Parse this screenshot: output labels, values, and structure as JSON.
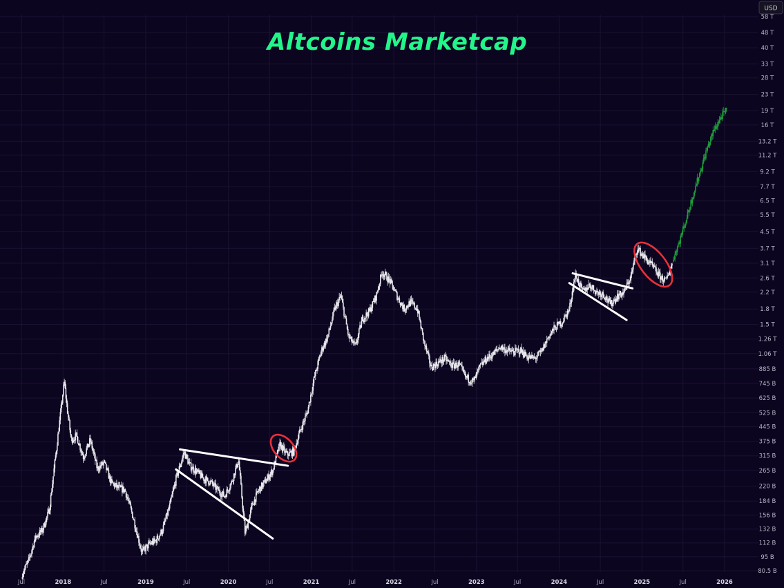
{
  "chart_data": {
    "type": "candlestick",
    "title": "Altcoins Marketcap",
    "currency_label": "USD",
    "y_scale": "log",
    "y_unit": "USD",
    "ylim": [
      80500000000,
      60000000000000
    ],
    "xlim": [
      "2017-07-01",
      "2026-04-15"
    ],
    "y_ticks": [
      {
        "label": "58 T",
        "value": 58000000000000
      },
      {
        "label": "48 T",
        "value": 48000000000000
      },
      {
        "label": "40 T",
        "value": 40000000000000
      },
      {
        "label": "33 T",
        "value": 33000000000000
      },
      {
        "label": "28 T",
        "value": 28000000000000
      },
      {
        "label": "23 T",
        "value": 23000000000000
      },
      {
        "label": "19 T",
        "value": 19000000000000
      },
      {
        "label": "16 T",
        "value": 16000000000000
      },
      {
        "label": "13.2 T",
        "value": 13200000000000
      },
      {
        "label": "11.2 T",
        "value": 11200000000000
      },
      {
        "label": "9.2 T",
        "value": 9200000000000
      },
      {
        "label": "7.7 T",
        "value": 7700000000000
      },
      {
        "label": "6.5 T",
        "value": 6500000000000
      },
      {
        "label": "5.5 T",
        "value": 5500000000000
      },
      {
        "label": "4.5 T",
        "value": 4500000000000
      },
      {
        "label": "3.7 T",
        "value": 3700000000000
      },
      {
        "label": "3.1 T",
        "value": 3100000000000
      },
      {
        "label": "2.6 T",
        "value": 2600000000000
      },
      {
        "label": "2.2 T",
        "value": 2200000000000
      },
      {
        "label": "1.8 T",
        "value": 1800000000000
      },
      {
        "label": "1.5 T",
        "value": 1500000000000
      },
      {
        "label": "1.26 T",
        "value": 1260000000000
      },
      {
        "label": "1.06 T",
        "value": 1060000000000
      },
      {
        "label": "885 B",
        "value": 885000000000
      },
      {
        "label": "745 B",
        "value": 745000000000
      },
      {
        "label": "625 B",
        "value": 625000000000
      },
      {
        "label": "525 B",
        "value": 525000000000
      },
      {
        "label": "445 B",
        "value": 445000000000
      },
      {
        "label": "375 B",
        "value": 375000000000
      },
      {
        "label": "315 B",
        "value": 315000000000
      },
      {
        "label": "265 B",
        "value": 265000000000
      },
      {
        "label": "220 B",
        "value": 220000000000
      },
      {
        "label": "184 B",
        "value": 184000000000
      },
      {
        "label": "156 B",
        "value": 156000000000
      },
      {
        "label": "132 B",
        "value": 132000000000
      },
      {
        "label": "112 B",
        "value": 112000000000
      },
      {
        "label": "95 B",
        "value": 95000000000
      },
      {
        "label": "80.5 B",
        "value": 80500000000
      }
    ],
    "x_ticks": [
      {
        "label": "Jul",
        "date": "2017-07-01",
        "year": false
      },
      {
        "label": "2018",
        "date": "2018-01-01",
        "year": true
      },
      {
        "label": "Jul",
        "date": "2018-07-01",
        "year": false
      },
      {
        "label": "2019",
        "date": "2019-01-01",
        "year": true
      },
      {
        "label": "Jul",
        "date": "2019-07-01",
        "year": false
      },
      {
        "label": "2020",
        "date": "2020-01-01",
        "year": true
      },
      {
        "label": "Jul",
        "date": "2020-07-01",
        "year": false
      },
      {
        "label": "2021",
        "date": "2021-01-01",
        "year": true
      },
      {
        "label": "Jul",
        "date": "2021-07-01",
        "year": false
      },
      {
        "label": "2022",
        "date": "2022-01-01",
        "year": true
      },
      {
        "label": "Jul",
        "date": "2022-07-01",
        "year": false
      },
      {
        "label": "2023",
        "date": "2023-01-01",
        "year": true
      },
      {
        "label": "Jul",
        "date": "2023-07-01",
        "year": false
      },
      {
        "label": "2024",
        "date": "2024-01-01",
        "year": true
      },
      {
        "label": "Jul",
        "date": "2024-07-01",
        "year": false
      },
      {
        "label": "2025",
        "date": "2025-01-01",
        "year": true
      },
      {
        "label": "Jul",
        "date": "2025-07-01",
        "year": false
      },
      {
        "label": "2026",
        "date": "2026-01-01",
        "year": true
      }
    ],
    "series": [
      {
        "values_unit": "USD billions",
        "points": [
          [
            "2017-07-05",
            78
          ],
          [
            "2017-08-01",
            90
          ],
          [
            "2017-09-01",
            120
          ],
          [
            "2017-10-01",
            130
          ],
          [
            "2017-11-01",
            165
          ],
          [
            "2017-12-01",
            330
          ],
          [
            "2018-01-06",
            760
          ],
          [
            "2018-01-20",
            540
          ],
          [
            "2018-02-06",
            380
          ],
          [
            "2018-03-01",
            400
          ],
          [
            "2018-04-01",
            310
          ],
          [
            "2018-05-01",
            380
          ],
          [
            "2018-06-01",
            270
          ],
          [
            "2018-07-01",
            290
          ],
          [
            "2018-08-01",
            230
          ],
          [
            "2018-09-01",
            215
          ],
          [
            "2018-10-01",
            210
          ],
          [
            "2018-11-01",
            160
          ],
          [
            "2018-12-15",
            100
          ],
          [
            "2019-01-15",
            110
          ],
          [
            "2019-02-15",
            115
          ],
          [
            "2019-03-15",
            130
          ],
          [
            "2019-04-15",
            170
          ],
          [
            "2019-05-15",
            240
          ],
          [
            "2019-06-20",
            330
          ],
          [
            "2019-07-15",
            280
          ],
          [
            "2019-08-15",
            260
          ],
          [
            "2019-09-15",
            240
          ],
          [
            "2019-10-15",
            230
          ],
          [
            "2019-11-15",
            210
          ],
          [
            "2019-12-15",
            195
          ],
          [
            "2020-01-15",
            230
          ],
          [
            "2020-02-15",
            300
          ],
          [
            "2020-03-15",
            125
          ],
          [
            "2020-04-15",
            175
          ],
          [
            "2020-05-15",
            210
          ],
          [
            "2020-06-15",
            235
          ],
          [
            "2020-07-15",
            265
          ],
          [
            "2020-08-15",
            360
          ],
          [
            "2020-09-15",
            320
          ],
          [
            "2020-10-15",
            330
          ],
          [
            "2020-11-15",
            430
          ],
          [
            "2020-12-15",
            530
          ],
          [
            "2021-01-15",
            800
          ],
          [
            "2021-02-15",
            1100
          ],
          [
            "2021-03-15",
            1300
          ],
          [
            "2021-04-15",
            1800
          ],
          [
            "2021-05-12",
            2100
          ],
          [
            "2021-06-15",
            1300
          ],
          [
            "2021-07-15",
            1150
          ],
          [
            "2021-08-15",
            1600
          ],
          [
            "2021-09-15",
            1750
          ],
          [
            "2021-10-15",
            2100
          ],
          [
            "2021-11-10",
            2800
          ],
          [
            "2021-12-15",
            2500
          ],
          [
            "2022-01-15",
            2100
          ],
          [
            "2022-02-15",
            1800
          ],
          [
            "2022-03-15",
            1950
          ],
          [
            "2022-04-15",
            1800
          ],
          [
            "2022-05-15",
            1200
          ],
          [
            "2022-06-15",
            900
          ],
          [
            "2022-07-15",
            950
          ],
          [
            "2022-08-15",
            1000
          ],
          [
            "2022-09-15",
            920
          ],
          [
            "2022-10-15",
            930
          ],
          [
            "2022-11-15",
            800
          ],
          [
            "2022-12-20",
            760
          ],
          [
            "2023-01-15",
            900
          ],
          [
            "2023-02-15",
            1000
          ],
          [
            "2023-03-15",
            1050
          ],
          [
            "2023-04-15",
            1150
          ],
          [
            "2023-05-15",
            1100
          ],
          [
            "2023-06-15",
            1080
          ],
          [
            "2023-07-15",
            1100
          ],
          [
            "2023-08-15",
            1020
          ],
          [
            "2023-09-15",
            1000
          ],
          [
            "2023-10-15",
            1080
          ],
          [
            "2023-11-15",
            1300
          ],
          [
            "2023-12-15",
            1450
          ],
          [
            "2024-01-15",
            1550
          ],
          [
            "2024-02-15",
            1800
          ],
          [
            "2024-03-12",
            2700
          ],
          [
            "2024-04-15",
            2200
          ],
          [
            "2024-05-15",
            2400
          ],
          [
            "2024-06-15",
            2200
          ],
          [
            "2024-07-15",
            2150
          ],
          [
            "2024-08-15",
            1900
          ],
          [
            "2024-09-15",
            2100
          ],
          [
            "2024-10-15",
            2200
          ],
          [
            "2024-11-15",
            2700
          ],
          [
            "2024-12-10",
            3700
          ],
          [
            "2025-01-15",
            3300
          ],
          [
            "2025-02-15",
            3000
          ],
          [
            "2025-03-15",
            2700
          ],
          [
            "2025-04-15",
            2500
          ],
          [
            "2025-05-15",
            3100
          ]
        ]
      },
      {
        "values_unit": "USD billions",
        "points": [
          [
            "2025-05-20",
            3300
          ],
          [
            "2025-06-15",
            4000
          ],
          [
            "2025-07-15",
            5200
          ],
          [
            "2025-08-15",
            7000
          ],
          [
            "2025-09-15",
            9200
          ],
          [
            "2025-10-15",
            12000
          ],
          [
            "2025-11-15",
            15000
          ],
          [
            "2025-12-15",
            17500
          ],
          [
            "2026-01-10",
            19000
          ]
        ]
      }
    ],
    "annotations": [
      {
        "type": "trendline",
        "from": [
          "2019-06-01",
          340
        ],
        "to": [
          "2020-09-20",
          280
        ]
      },
      {
        "type": "trendline",
        "from": [
          "2019-05-15",
          268
        ],
        "to": [
          "2020-07-15",
          118
        ]
      },
      {
        "type": "ellipse",
        "center": [
          "2020-09-01",
          345
        ]
      },
      {
        "type": "trendline",
        "from": [
          "2024-03-01",
          2750
        ],
        "to": [
          "2024-11-20",
          2300
        ]
      },
      {
        "type": "trendline",
        "from": [
          "2024-02-15",
          2450
        ],
        "to": [
          "2024-10-25",
          1580
        ]
      },
      {
        "type": "ellipse",
        "center": [
          "2025-02-20",
          3050
        ]
      }
    ]
  }
}
